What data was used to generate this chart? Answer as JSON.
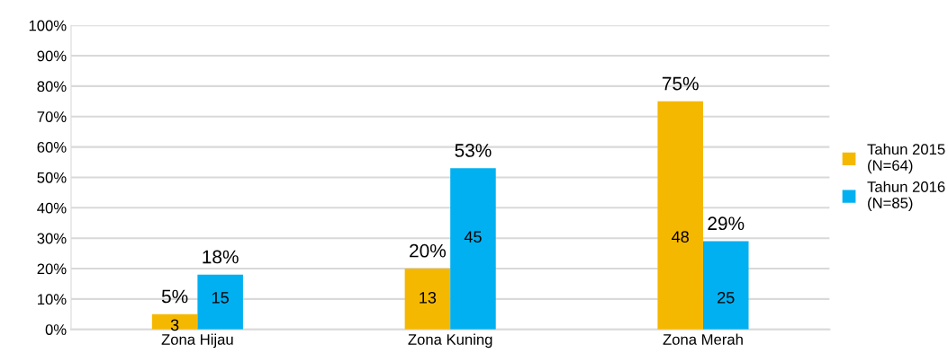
{
  "chart_data": {
    "type": "bar",
    "categories": [
      "Zona Hijau",
      "Zona Kuning",
      "Zona Merah"
    ],
    "series": [
      {
        "name": "Tahun 2015\n(N=64)",
        "color": "#f5b800",
        "values": [
          5,
          20,
          75
        ],
        "value_labels": [
          "5%",
          "20%",
          "75%"
        ]
      },
      {
        "name": "Tahun 2016\n(N=85)",
        "color": "#00b0f0",
        "values": [
          18,
          53,
          29
        ],
        "value_labels": [
          "18%",
          "53%",
          "29%"
        ]
      }
    ],
    "annotations": [
      {
        "text": "3",
        "x": "Zona Hijau",
        "y": 1
      },
      {
        "text": "13",
        "x": "Zona Kuning",
        "y": 10
      },
      {
        "text": "48",
        "x": "Zona Merah",
        "y": 30
      },
      {
        "text": "15",
        "x": "Zona Hijau",
        "y": 10
      },
      {
        "text": "45",
        "x": "Zona Kuning",
        "y": 30
      },
      {
        "text": "25",
        "x": "Zona Merah",
        "y": 10
      }
    ],
    "ylim": [
      0,
      100
    ],
    "yticks": [
      {
        "value": 0,
        "label": "0%"
      },
      {
        "value": 10,
        "label": "10%"
      },
      {
        "value": 20,
        "label": "20%"
      },
      {
        "value": 30,
        "label": "30%"
      },
      {
        "value": 40,
        "label": "40%"
      },
      {
        "value": 50,
        "label": "50%"
      },
      {
        "value": 60,
        "label": "60%"
      },
      {
        "value": 70,
        "label": "70%"
      },
      {
        "value": 80,
        "label": "80%"
      },
      {
        "value": 90,
        "label": "90%"
      },
      {
        "value": 100,
        "label": "100%"
      }
    ],
    "grid": "y",
    "legend": "right"
  }
}
